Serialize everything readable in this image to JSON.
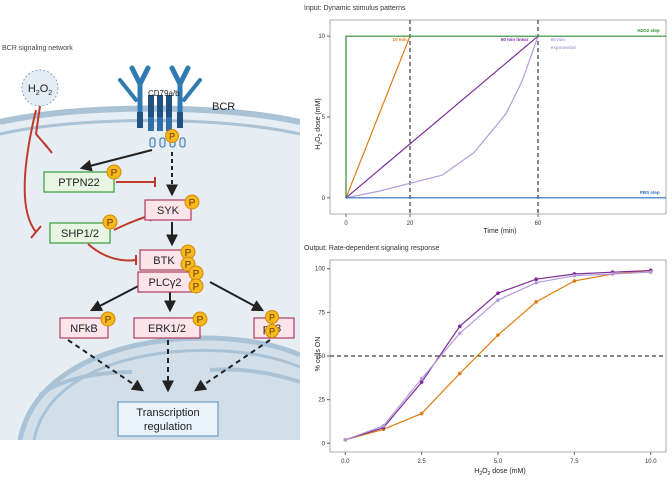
{
  "diagram": {
    "title": "BCR signaling network",
    "h2o2": {
      "main": "H",
      "sub1": "2",
      "mid": "O",
      "sub2": "2"
    },
    "cd79": "CD79a/b",
    "bcr": "BCR",
    "phospho": "P",
    "nodes": {
      "ptpn22": "PTPN22",
      "shp": "SHP1/2",
      "syk": "SYK",
      "btk": "BTK",
      "plcg2": "PLCγ2",
      "nfkb": "NFkB",
      "erk": "ERK1/2",
      "p38": "p38",
      "tx1": "Transcription",
      "tx2": "regulation"
    }
  },
  "chart_data": [
    {
      "type": "line",
      "title": "Input: Dynamic stimulus patterns",
      "xlabel": "Time (min)",
      "ylabel": "H2O2 dose (mM)",
      "xlim": [
        -5,
        100
      ],
      "ylim": [
        -1,
        11
      ],
      "xticks": [
        "0",
        "20",
        "60"
      ],
      "xtick_values": [
        0,
        20,
        60
      ],
      "yticks": [
        "0",
        "5",
        "10"
      ],
      "ytick_values": [
        0,
        5,
        10
      ],
      "vlines": [
        20,
        60
      ],
      "series": [
        {
          "name": "10 min",
          "color": "#e07b10",
          "x": [
            0,
            20
          ],
          "y": [
            0,
            10
          ]
        },
        {
          "name": "60 min linear",
          "color": "#7b2d9a",
          "x": [
            0,
            60
          ],
          "y": [
            0,
            10
          ]
        },
        {
          "name": "60 min exponential",
          "color": "#b39ad9",
          "x": [
            0,
            10,
            20,
            30,
            40,
            50,
            55,
            60
          ],
          "y": [
            0,
            0.4,
            0.9,
            1.4,
            2.8,
            5.2,
            7.2,
            10
          ]
        },
        {
          "name": "H2O2 step",
          "color": "#2e8b2e",
          "x": [
            0,
            0,
            100
          ],
          "y": [
            0,
            10,
            10
          ]
        },
        {
          "name": "PBS step",
          "color": "#2a6ebb",
          "x": [
            0,
            100
          ],
          "y": [
            0,
            0
          ]
        }
      ],
      "labels": [
        {
          "text": "10 min",
          "color": "#e07b10",
          "x": 19,
          "y": 9.7
        },
        {
          "text": "60 min linear",
          "color": "#7b2d9a",
          "x": 57,
          "y": 9.7
        },
        {
          "text": "60 min",
          "color": "#b39ad9",
          "x": 64,
          "y": 9.7
        },
        {
          "text": "exponential",
          "color": "#b39ad9",
          "x": 64,
          "y": 9.2
        },
        {
          "text": "H2O2 step",
          "color": "#2e8b2e",
          "x": 98,
          "y": 10.25
        },
        {
          "text": "PBS step",
          "color": "#2a6ebb",
          "x": 98,
          "y": 0.25
        }
      ]
    },
    {
      "type": "line",
      "title": "Output: Rate-dependent signaling response",
      "xlabel": "H2O2 dose (mM)",
      "ylabel": "% cells ON",
      "xlim": [
        -0.5,
        10.5
      ],
      "ylim": [
        -5,
        105
      ],
      "xticks": [
        "0.0",
        "2.5",
        "5.0",
        "7.5",
        "10.0"
      ],
      "xtick_values": [
        0,
        2.5,
        5,
        7.5,
        10
      ],
      "yticks": [
        "0",
        "25",
        "50",
        "75",
        "100"
      ],
      "ytick_values": [
        0,
        25,
        50,
        75,
        100
      ],
      "hline": 50,
      "series": [
        {
          "color": "#e07b10",
          "x": [
            0,
            1.25,
            2.5,
            3.75,
            5,
            6.25,
            7.5,
            8.75,
            10
          ],
          "y": [
            2,
            8,
            17,
            40,
            62,
            81,
            93,
            97,
            99
          ]
        },
        {
          "color": "#7b2d9a",
          "x": [
            0,
            1.25,
            2.5,
            3.75,
            5,
            6.25,
            7.5,
            8.75,
            10
          ],
          "y": [
            2,
            9,
            35,
            67,
            86,
            94,
            97,
            98,
            99
          ]
        },
        {
          "color": "#b39ad9",
          "x": [
            0,
            1.25,
            2.5,
            3.75,
            5,
            6.25,
            7.5,
            8.75,
            10
          ],
          "y": [
            2,
            10,
            37,
            63,
            82,
            92,
            96,
            97,
            98
          ]
        }
      ]
    }
  ]
}
